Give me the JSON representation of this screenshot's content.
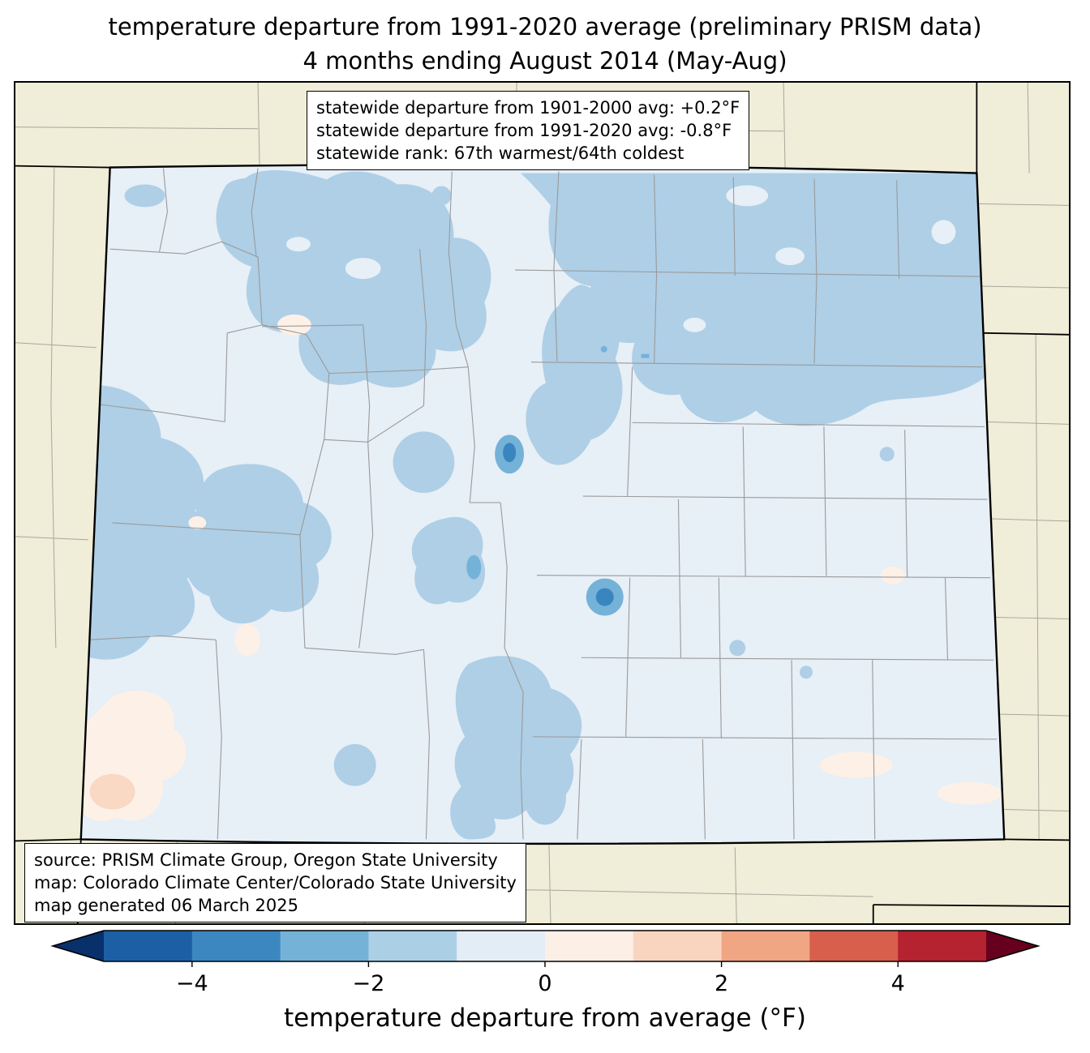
{
  "title": {
    "line1": "temperature departure from 1991-2020 average (preliminary PRISM data)",
    "line2": "4 months ending August 2014 (May-Aug)"
  },
  "stats_box": {
    "lines": [
      "statewide departure from 1901-2000 avg: +0.2°F",
      "statewide departure from 1991-2020 avg: -0.8°F",
      "statewide rank: 67th warmest/64th coldest"
    ]
  },
  "source_box": {
    "lines": [
      "source: PRISM Climate Group, Oregon State University",
      "map: Colorado Climate Center/Colorado State University",
      "map generated 06 March 2025"
    ]
  },
  "colorbar": {
    "label": "temperature departure from average (°F)",
    "ticks": [
      "−4",
      "−2",
      "0",
      "2",
      "4"
    ],
    "tick_values": [
      -4,
      -2,
      0,
      2,
      4
    ],
    "range": [
      -5,
      5
    ],
    "segment_colors": [
      "#1d5fa5",
      "#3c87c0",
      "#74b2d8",
      "#abd0e6",
      "#e3edf6",
      "#fcefe5",
      "#f9d5c0",
      "#f0a583",
      "#d75f4c",
      "#b52230"
    ],
    "left_arrow_color": "#08306b",
    "right_arrow_color": "#67001f"
  },
  "map": {
    "region": "Colorado",
    "outside_fill": "#f0edd8",
    "state_base_fill": "#e7eff7",
    "anomaly_fills": {
      "cool_light": "#aecfe6",
      "cool_medium": "#74b2d8",
      "cool_dark": "#3985bf",
      "warm_light": "#fdf0e6",
      "warm_medium": "#f9d8c4"
    },
    "county_line_color": "#9a9a9a",
    "border_color": "#000000"
  }
}
